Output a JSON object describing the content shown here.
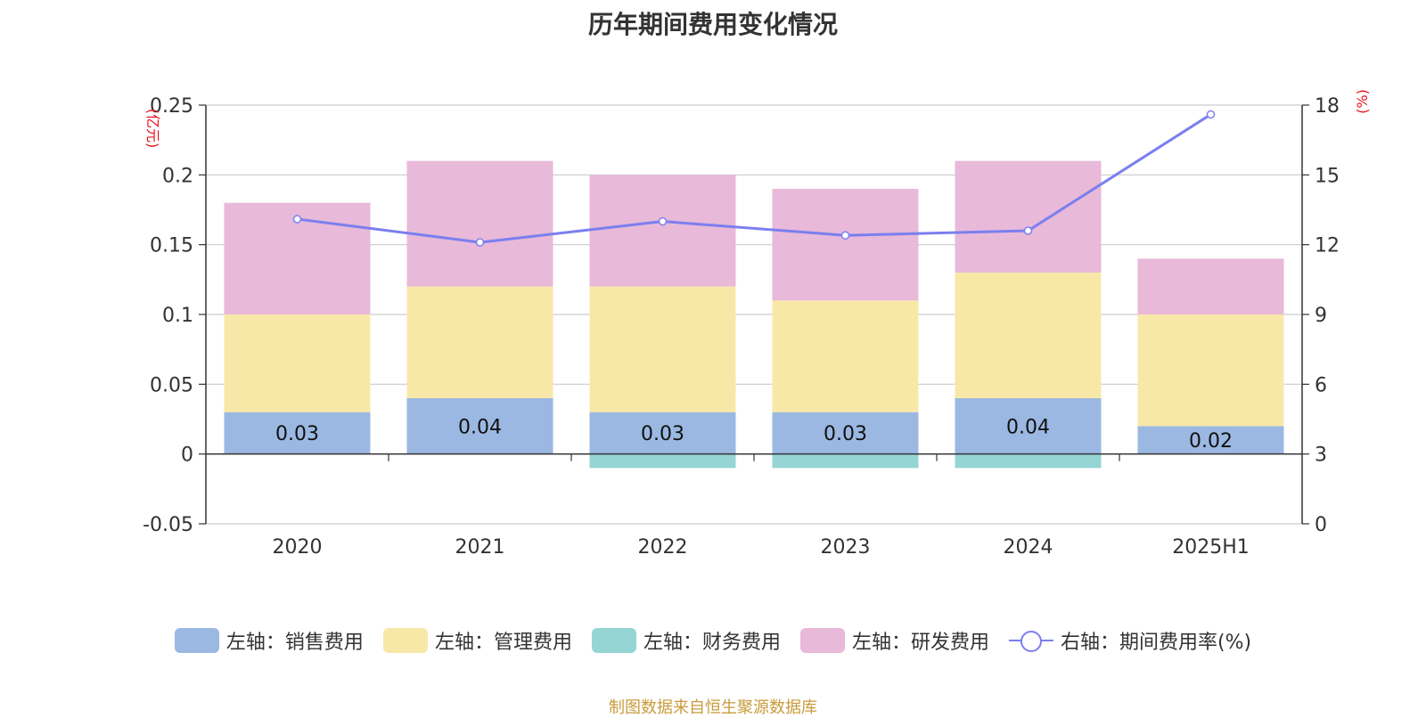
{
  "chart_data": {
    "type": "bar",
    "title": "历年期间费用变化情况",
    "categories": [
      "2020",
      "2021",
      "2022",
      "2023",
      "2024",
      "2025H1"
    ],
    "y_left_unit": "(亿元)",
    "y_right_unit": "(%)",
    "y_left_ticks": [
      "0.25",
      "0.2",
      "0.15",
      "0.1",
      "0.05",
      "0",
      "-0.05"
    ],
    "y_right_ticks": [
      "18",
      "15",
      "12",
      "9",
      "6",
      "3",
      "0"
    ],
    "ylim_left": [
      -0.05,
      0.25
    ],
    "ylim_right": [
      0,
      18
    ],
    "stacked": true,
    "series": [
      {
        "name": "左轴：销售费用",
        "axis": "left",
        "color": "#9bb8e2",
        "values": [
          0.03,
          0.04,
          0.03,
          0.03,
          0.04,
          0.02
        ],
        "labels": [
          "0.03",
          "0.04",
          "0.03",
          "0.03",
          "0.04",
          "0.02"
        ]
      },
      {
        "name": "左轴：管理费用",
        "axis": "left",
        "color": "#f8e8a8",
        "values": [
          0.07,
          0.08,
          0.09,
          0.08,
          0.09,
          0.08
        ]
      },
      {
        "name": "左轴：财务费用",
        "axis": "left",
        "color": "#95d5d4",
        "values": [
          0,
          0,
          -0.01,
          -0.01,
          -0.01,
          0
        ]
      },
      {
        "name": "左轴：研发费用",
        "axis": "left",
        "color": "#e8b9d9",
        "values": [
          0.08,
          0.09,
          0.08,
          0.08,
          0.08,
          0.04
        ]
      },
      {
        "name": "右轴：期间费用率(%)",
        "axis": "right",
        "type": "line",
        "color": "#7b7fef",
        "values": [
          13.1,
          12.1,
          13.0,
          12.4,
          12.6,
          17.6
        ]
      }
    ],
    "grid": true,
    "legend_position": "bottom"
  },
  "source": "制图数据来自恒生聚源数据库"
}
